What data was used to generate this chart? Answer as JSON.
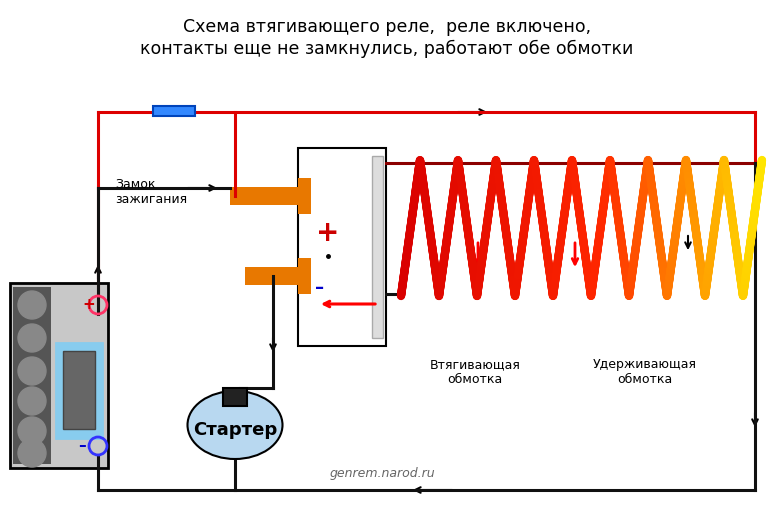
{
  "title_line1": "Схема втягивающего реле,  реле включено,",
  "title_line2": "контакты еще не замкнулись, работают обе обмотки",
  "watermark": "genrem.narod.ru",
  "label_ignition": "Замок\nзажигания",
  "label_pull": "Втягивающая\nобмотка",
  "label_hold": "Удерживающая\nобмотка",
  "label_starter": "Стартер",
  "plus_label": "+",
  "minus_label": "–",
  "bg_color": "#ffffff",
  "terminal_color": "#e87800",
  "wire_red": "#dd0000",
  "wire_black": "#111111",
  "wire_dark_red": "#8b0000",
  "battery_bg": "#c8c8c8",
  "starter_color": "#b8d8f0",
  "plus_color": "#cc0000",
  "minus_color": "#0000cc",
  "terminal_plus_color": "#ff3366",
  "terminal_minus_color": "#3333ff",
  "switch_color": "#3388ff",
  "switch_edge": "#0044bb"
}
